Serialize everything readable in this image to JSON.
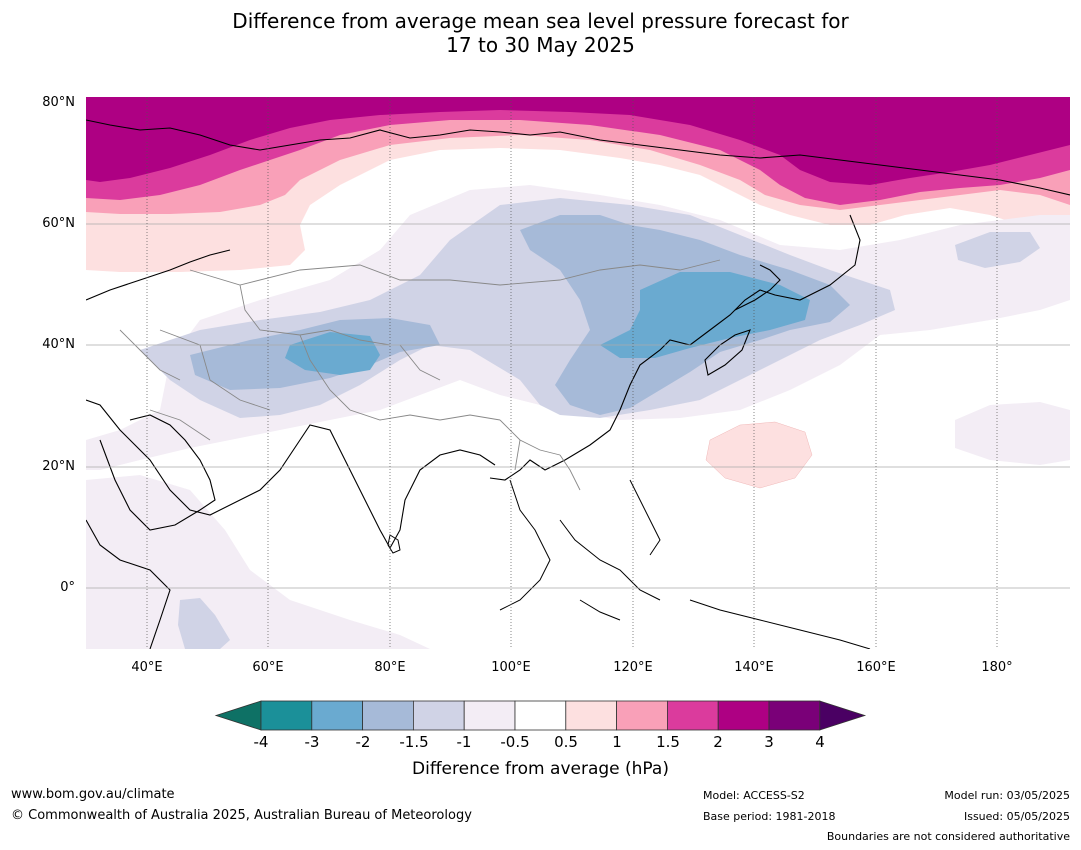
{
  "title": {
    "line1": "Difference from average mean sea level pressure forecast for",
    "line2": "17 to 30 May 2025"
  },
  "map": {
    "lat_labels": [
      "80°N",
      "60°N",
      "40°N",
      "20°N",
      "0°"
    ],
    "lon_labels": [
      "40°E",
      "60°E",
      "80°E",
      "100°E",
      "120°E",
      "140°E",
      "160°E",
      "180°"
    ],
    "extent": {
      "lon": [
        30,
        190
      ],
      "lat": [
        -10,
        80
      ]
    }
  },
  "colorbar": {
    "ticks": [
      "-4",
      "-3",
      "-2",
      "-1.5",
      "-1",
      "-0.5",
      "0.5",
      "1",
      "1.5",
      "2",
      "3",
      "4"
    ],
    "colors": [
      "#0e7165",
      "#1b9099",
      "#6aaad0",
      "#a6bad8",
      "#d0d3e6",
      "#f3edf5",
      "#ffffff",
      "#fde0e0",
      "#f9a0b8",
      "#db3b9d",
      "#ae0083",
      "#7a0078",
      "#4a0063"
    ],
    "title": "Difference from average (hPa)"
  },
  "footer": {
    "website": "www.bom.gov.au/climate",
    "copyright": "© Commonwealth of Australia 2025, Australian Bureau of Meteorology",
    "model": "Model: ACCESS-S2",
    "base_period": "Base period: 1981-2018",
    "model_run": "Model run: 03/05/2025",
    "issued": "Issued: 05/05/2025",
    "disclaimer": "Boundaries are not considered authoritative"
  }
}
